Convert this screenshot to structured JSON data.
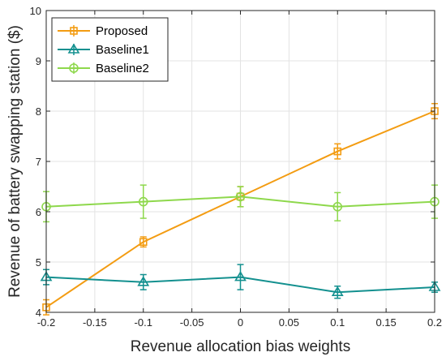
{
  "chart_data": {
    "type": "line",
    "title": "",
    "xlabel": "Revenue allocation bias weights",
    "ylabel": "Revenue of battery swapping station ($)",
    "x": [
      -0.2,
      -0.1,
      0,
      0.1,
      0.2
    ],
    "xlim": [
      -0.2,
      0.2
    ],
    "ylim": [
      4,
      10
    ],
    "xticks": [
      "-0.2",
      "-0.15",
      "-0.1",
      "-0.05",
      "0",
      "0.05",
      "0.1",
      "0.15",
      "0.2"
    ],
    "yticks": [
      "4",
      "5",
      "6",
      "7",
      "8",
      "9",
      "10"
    ],
    "grid": true,
    "legend_position": "top-left",
    "series": [
      {
        "name": "Proposed",
        "color": "#F39C12",
        "marker": "square",
        "values": [
          4.1,
          5.4,
          6.3,
          7.2,
          8.0
        ],
        "error": [
          0.15,
          0.1,
          0.2,
          0.15,
          0.15
        ]
      },
      {
        "name": "Baseline1",
        "color": "#13908F",
        "marker": "triangle",
        "values": [
          4.7,
          4.6,
          4.7,
          4.4,
          4.5
        ],
        "error": [
          0.15,
          0.15,
          0.25,
          0.12,
          0.1
        ]
      },
      {
        "name": "Baseline2",
        "color": "#8ED84C",
        "marker": "circle",
        "values": [
          6.1,
          6.2,
          6.3,
          6.1,
          6.2
        ],
        "error": [
          0.3,
          0.33,
          0.2,
          0.28,
          0.33
        ]
      }
    ]
  }
}
